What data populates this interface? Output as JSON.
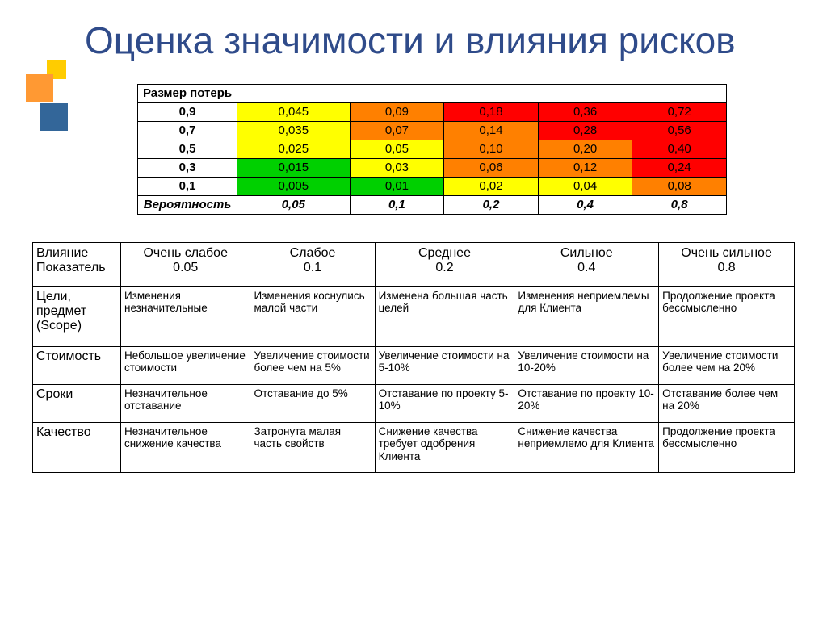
{
  "title": "Оценка значимости и влияния рисков",
  "heatmap": {
    "header_label": "Размер потерь",
    "footer_label": "Вероятность",
    "prob_columns": [
      "0,05",
      "0,1",
      "0,2",
      "0,4",
      "0,8"
    ],
    "rows": [
      {
        "loss": "0,9",
        "cells": [
          {
            "v": "0,045",
            "bg": "#ffff00"
          },
          {
            "v": "0,09",
            "bg": "#ff8000"
          },
          {
            "v": "0,18",
            "bg": "#ff0000"
          },
          {
            "v": "0,36",
            "bg": "#ff0000"
          },
          {
            "v": "0,72",
            "bg": "#ff0000"
          }
        ]
      },
      {
        "loss": "0,7",
        "cells": [
          {
            "v": "0,035",
            "bg": "#ffff00"
          },
          {
            "v": "0,07",
            "bg": "#ff8000"
          },
          {
            "v": "0,14",
            "bg": "#ff8000"
          },
          {
            "v": "0,28",
            "bg": "#ff0000"
          },
          {
            "v": "0,56",
            "bg": "#ff0000"
          }
        ]
      },
      {
        "loss": "0,5",
        "cells": [
          {
            "v": "0,025",
            "bg": "#ffff00"
          },
          {
            "v": "0,05",
            "bg": "#ffff00"
          },
          {
            "v": "0,10",
            "bg": "#ff8000"
          },
          {
            "v": "0,20",
            "bg": "#ff8000"
          },
          {
            "v": "0,40",
            "bg": "#ff0000"
          }
        ]
      },
      {
        "loss": "0,3",
        "cells": [
          {
            "v": "0,015",
            "bg": "#00d000"
          },
          {
            "v": "0,03",
            "bg": "#ffff00"
          },
          {
            "v": "0,06",
            "bg": "#ff8000"
          },
          {
            "v": "0,12",
            "bg": "#ff8000"
          },
          {
            "v": "0,24",
            "bg": "#ff0000"
          }
        ]
      },
      {
        "loss": "0,1",
        "cells": [
          {
            "v": "0,005",
            "bg": "#00d000"
          },
          {
            "v": "0,01",
            "bg": "#00d000"
          },
          {
            "v": "0,02",
            "bg": "#ffff00"
          },
          {
            "v": "0,04",
            "bg": "#ffff00"
          },
          {
            "v": "0,08",
            "bg": "#ff8000"
          }
        ]
      }
    ]
  },
  "impact": {
    "corner_line1": "Влияние",
    "corner_line2": "Показатель",
    "columns": [
      {
        "h1": "Очень слабое",
        "h2": "0.05"
      },
      {
        "h1": "Слабое",
        "h2": "0.1"
      },
      {
        "h1": "Среднее",
        "h2": "0.2"
      },
      {
        "h1": "Сильное",
        "h2": "0.4"
      },
      {
        "h1": "Очень сильное",
        "h2": "0.8"
      }
    ],
    "rows": [
      {
        "label": "Цели, предмет (Scope)",
        "cells": [
          "Изменения незначительные",
          "Изменения коснулись малой части",
          "Изменена большая часть целей",
          "Изменения неприемлемы для Клиента",
          "Продолжение проекта бессмысленно"
        ]
      },
      {
        "label": "Стоимость",
        "cells": [
          "Небольшое увеличение стоимости",
          "Увеличение стоимости более чем на 5%",
          "Увеличение стоимости на 5-10%",
          "Увеличение стоимости на 10-20%",
          "Увеличение стоимости более чем  на 20%"
        ]
      },
      {
        "label": "Сроки",
        "cells": [
          "Незначительное отставание",
          "Отставание до 5%",
          "Отставание по проекту  5-10%",
          "Отставание по проекту 10-20%",
          "Отставание более чем на 20%"
        ]
      },
      {
        "label": "Качество",
        "cells": [
          "Незначительное снижение качества",
          "Затронута малая часть свойств",
          "Снижение качества требует одобрения Клиента",
          "Снижение качества неприемлемо для Клиента",
          "Продолжение проекта бессмысленно"
        ]
      }
    ]
  }
}
